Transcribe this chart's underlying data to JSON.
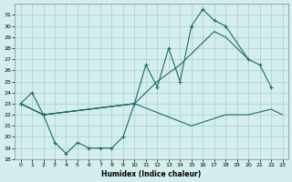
{
  "xlabel": "Humidex (Indice chaleur)",
  "bg_color": "#d4eeee",
  "grid_color": "#aacccc",
  "line_color": "#1a6b6b",
  "xlim": [
    -0.5,
    23.5
  ],
  "ylim": [
    18,
    32
  ],
  "yticks": [
    18,
    19,
    20,
    21,
    22,
    23,
    24,
    25,
    26,
    27,
    28,
    29,
    30,
    31
  ],
  "xticks": [
    0,
    1,
    2,
    3,
    4,
    5,
    6,
    7,
    8,
    9,
    10,
    11,
    12,
    13,
    14,
    15,
    16,
    17,
    18,
    19,
    20,
    21,
    22,
    23
  ],
  "series": {
    "line1_x": [
      0,
      1,
      2,
      3,
      4,
      5,
      6,
      7,
      8,
      9,
      10
    ],
    "line1_y": [
      23,
      24,
      22,
      19.5,
      18.5,
      19.5,
      19,
      19,
      19,
      20,
      23
    ],
    "line2_x": [
      0,
      2,
      10,
      11,
      12,
      13,
      14,
      15,
      16,
      17,
      18,
      20,
      21,
      22
    ],
    "line2_y": [
      23,
      22,
      23,
      26.5,
      24.5,
      28,
      25,
      30,
      31.5,
      30.5,
      30,
      27,
      26.5,
      24.5
    ],
    "line3_x": [
      0,
      2,
      10,
      12,
      14,
      15,
      17,
      18,
      20,
      21,
      22,
      23
    ],
    "line3_y": [
      23,
      22,
      23,
      25,
      26.5,
      27.5,
      29.5,
      29,
      27,
      null,
      null,
      22
    ],
    "line4_x": [
      0,
      2,
      10,
      15,
      18,
      20,
      22,
      23
    ],
    "line4_y": [
      23,
      22,
      23,
      21,
      22,
      22,
      22.5,
      22
    ]
  }
}
